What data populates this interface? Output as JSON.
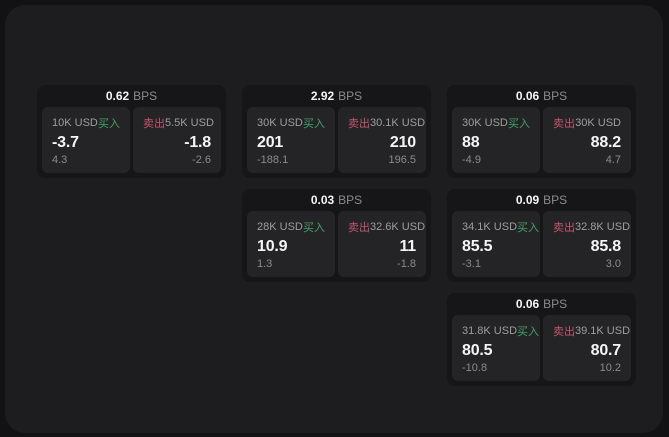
{
  "colors": {
    "page_bg": "#121214",
    "panel_bg": "#1d1d1f",
    "card_bg": "#161618",
    "subpanel_bg": "#242427",
    "text_primary": "#f5f5f5",
    "text_secondary": "#9e9e9e",
    "text_tertiary": "#8b8b8b",
    "buy_green": "#45a167",
    "sell_red": "#c2566a"
  },
  "labels": {
    "bps_suffix": "BPS",
    "buy": "买入",
    "sell": "卖出"
  },
  "cards": [
    {
      "grid": {
        "row": 1,
        "col": 1
      },
      "bps": "0.62",
      "buy": {
        "amount": "10K USD",
        "price": "-3.7",
        "delta": "4.3"
      },
      "sell": {
        "amount": "5.5K USD",
        "price": "-1.8",
        "delta": "-2.6"
      }
    },
    {
      "grid": {
        "row": 1,
        "col": 2
      },
      "bps": "2.92",
      "buy": {
        "amount": "30K USD",
        "price": "201",
        "delta": "-188.1"
      },
      "sell": {
        "amount": "30.1K USD",
        "price": "210",
        "delta": "196.5"
      }
    },
    {
      "grid": {
        "row": 1,
        "col": 3
      },
      "bps": "0.06",
      "buy": {
        "amount": "30K USD",
        "price": "88",
        "delta": "-4.9"
      },
      "sell": {
        "amount": "30K USD",
        "price": "88.2",
        "delta": "4.7"
      }
    },
    {
      "grid": {
        "row": 2,
        "col": 2
      },
      "bps": "0.03",
      "buy": {
        "amount": "28K USD",
        "price": "10.9",
        "delta": "1.3"
      },
      "sell": {
        "amount": "32.6K USD",
        "price": "11",
        "delta": "-1.8"
      }
    },
    {
      "grid": {
        "row": 2,
        "col": 3
      },
      "bps": "0.09",
      "buy": {
        "amount": "34.1K USD",
        "price": "85.5",
        "delta": "-3.1"
      },
      "sell": {
        "amount": "32.8K USD",
        "price": "85.8",
        "delta": "3.0"
      }
    },
    {
      "grid": {
        "row": 3,
        "col": 3
      },
      "bps": "0.06",
      "buy": {
        "amount": "31.8K USD",
        "price": "80.5",
        "delta": "-10.8"
      },
      "sell": {
        "amount": "39.1K USD",
        "price": "80.7",
        "delta": "10.2"
      }
    }
  ]
}
